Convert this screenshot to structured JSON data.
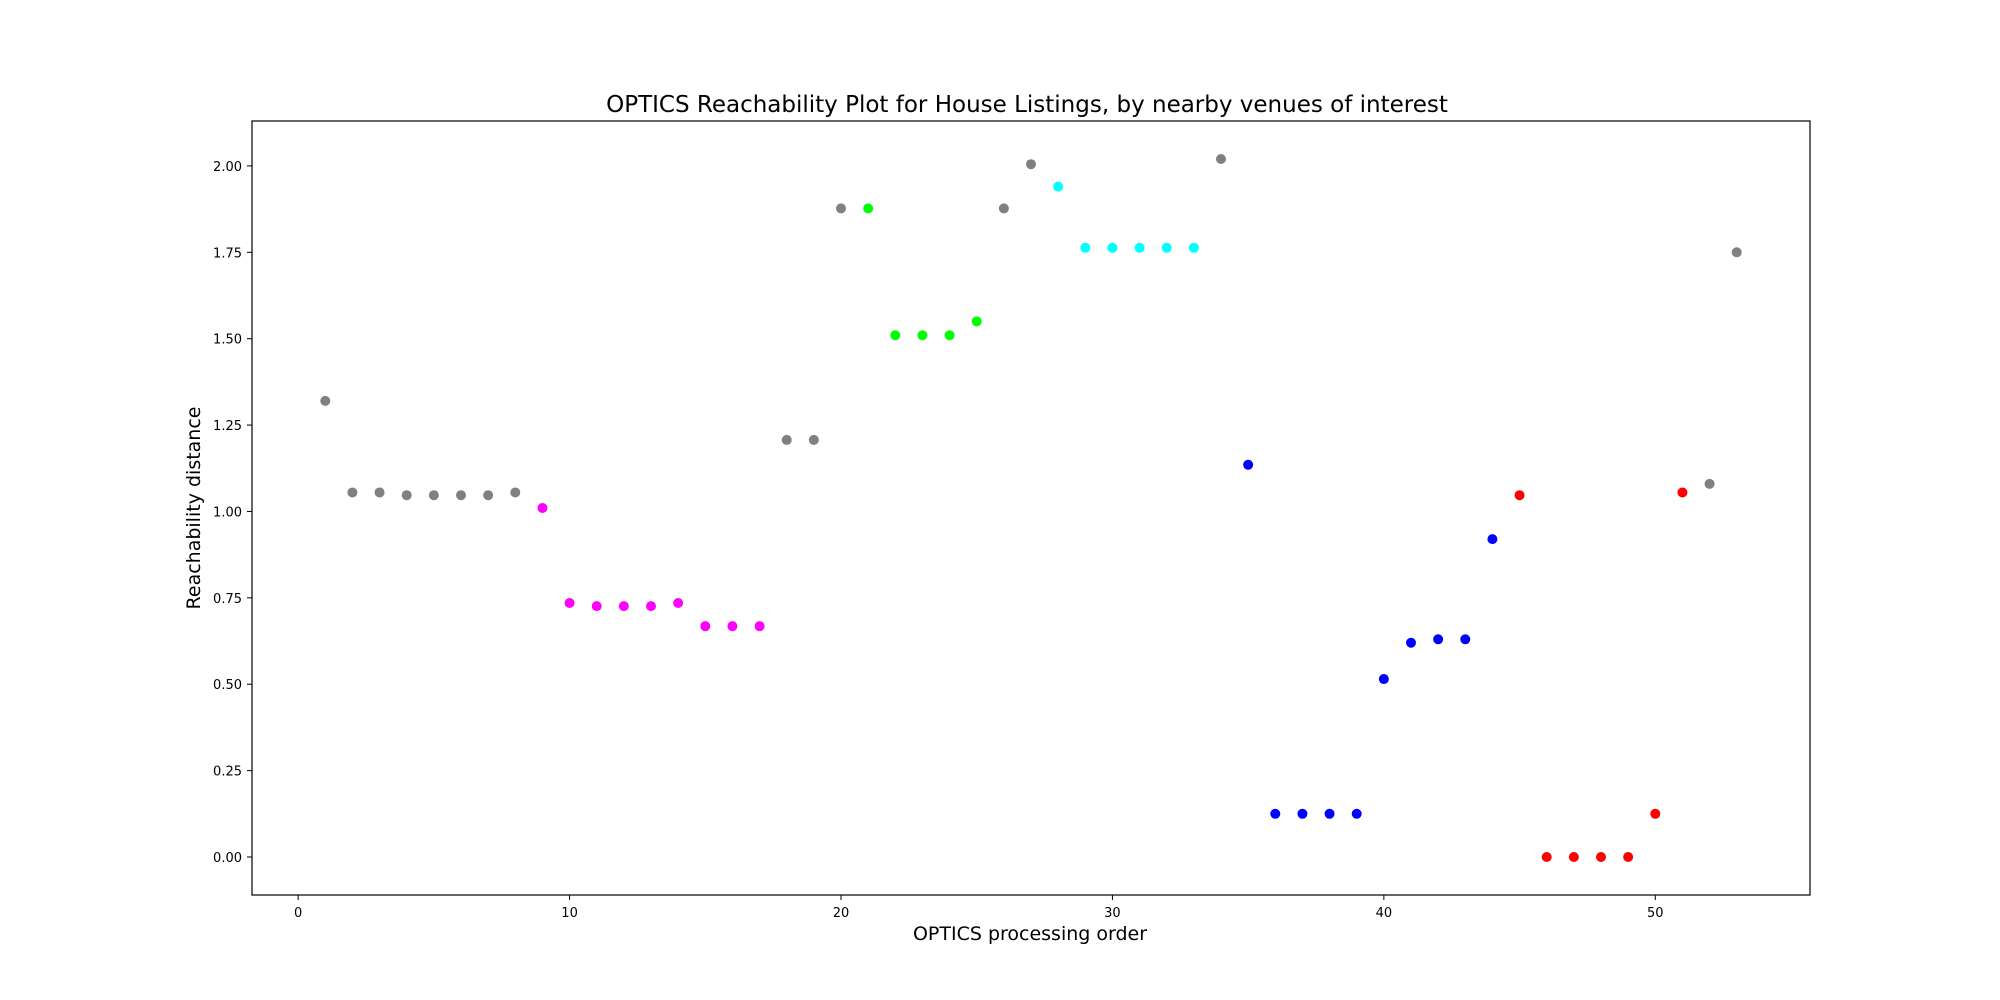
{
  "chart_data": {
    "type": "scatter",
    "title": "OPTICS Reachability Plot for House Listings, by nearby venues of interest",
    "xlabel": "OPTICS processing order",
    "ylabel": "Reachability distance",
    "xlim": [
      -1.7,
      55.7
    ],
    "ylim": [
      -0.11,
      2.13
    ],
    "xticks": [
      0,
      10,
      20,
      30,
      40,
      50
    ],
    "yticks": [
      0.0,
      0.25,
      0.5,
      0.75,
      1.0,
      1.25,
      1.5,
      1.75,
      2.0
    ],
    "grid": false,
    "legend": "none",
    "colors": {
      "noise": "#808080",
      "magenta": "#ff00ff",
      "green": "#00ff00",
      "cyan": "#00ffff",
      "blue": "#0000ff",
      "red": "#ff0000"
    },
    "points": [
      {
        "x": 1,
        "y": 1.32,
        "color": "#808080"
      },
      {
        "x": 2,
        "y": 1.055,
        "color": "#808080"
      },
      {
        "x": 3,
        "y": 1.055,
        "color": "#808080"
      },
      {
        "x": 4,
        "y": 1.047,
        "color": "#808080"
      },
      {
        "x": 5,
        "y": 1.047,
        "color": "#808080"
      },
      {
        "x": 6,
        "y": 1.047,
        "color": "#808080"
      },
      {
        "x": 7,
        "y": 1.047,
        "color": "#808080"
      },
      {
        "x": 8,
        "y": 1.055,
        "color": "#808080"
      },
      {
        "x": 9,
        "y": 1.01,
        "color": "#ff00ff"
      },
      {
        "x": 10,
        "y": 0.735,
        "color": "#ff00ff"
      },
      {
        "x": 11,
        "y": 0.726,
        "color": "#ff00ff"
      },
      {
        "x": 12,
        "y": 0.726,
        "color": "#ff00ff"
      },
      {
        "x": 13,
        "y": 0.726,
        "color": "#ff00ff"
      },
      {
        "x": 14,
        "y": 0.735,
        "color": "#ff00ff"
      },
      {
        "x": 15,
        "y": 0.668,
        "color": "#ff00ff"
      },
      {
        "x": 16,
        "y": 0.668,
        "color": "#ff00ff"
      },
      {
        "x": 17,
        "y": 0.668,
        "color": "#ff00ff"
      },
      {
        "x": 18,
        "y": 1.207,
        "color": "#808080"
      },
      {
        "x": 19,
        "y": 1.207,
        "color": "#808080"
      },
      {
        "x": 20,
        "y": 1.877,
        "color": "#808080"
      },
      {
        "x": 21,
        "y": 1.877,
        "color": "#00ff00"
      },
      {
        "x": 22,
        "y": 1.51,
        "color": "#00ff00"
      },
      {
        "x": 23,
        "y": 1.51,
        "color": "#00ff00"
      },
      {
        "x": 24,
        "y": 1.51,
        "color": "#00ff00"
      },
      {
        "x": 25,
        "y": 1.55,
        "color": "#00ff00"
      },
      {
        "x": 26,
        "y": 1.877,
        "color": "#808080"
      },
      {
        "x": 27,
        "y": 2.005,
        "color": "#808080"
      },
      {
        "x": 28,
        "y": 1.94,
        "color": "#00ffff"
      },
      {
        "x": 29,
        "y": 1.763,
        "color": "#00ffff"
      },
      {
        "x": 30,
        "y": 1.763,
        "color": "#00ffff"
      },
      {
        "x": 31,
        "y": 1.763,
        "color": "#00ffff"
      },
      {
        "x": 32,
        "y": 1.763,
        "color": "#00ffff"
      },
      {
        "x": 33,
        "y": 1.763,
        "color": "#00ffff"
      },
      {
        "x": 34,
        "y": 2.02,
        "color": "#808080"
      },
      {
        "x": 35,
        "y": 1.135,
        "color": "#0000ff"
      },
      {
        "x": 36,
        "y": 0.125,
        "color": "#0000ff"
      },
      {
        "x": 37,
        "y": 0.125,
        "color": "#0000ff"
      },
      {
        "x": 38,
        "y": 0.125,
        "color": "#0000ff"
      },
      {
        "x": 39,
        "y": 0.125,
        "color": "#0000ff"
      },
      {
        "x": 40,
        "y": 0.515,
        "color": "#0000ff"
      },
      {
        "x": 41,
        "y": 0.62,
        "color": "#0000ff"
      },
      {
        "x": 42,
        "y": 0.63,
        "color": "#0000ff"
      },
      {
        "x": 43,
        "y": 0.63,
        "color": "#0000ff"
      },
      {
        "x": 44,
        "y": 0.92,
        "color": "#0000ff"
      },
      {
        "x": 45,
        "y": 1.047,
        "color": "#ff0000"
      },
      {
        "x": 46,
        "y": 0.0,
        "color": "#ff0000"
      },
      {
        "x": 47,
        "y": 0.0,
        "color": "#ff0000"
      },
      {
        "x": 48,
        "y": 0.0,
        "color": "#ff0000"
      },
      {
        "x": 49,
        "y": 0.0,
        "color": "#ff0000"
      },
      {
        "x": 50,
        "y": 0.125,
        "color": "#ff0000"
      },
      {
        "x": 51,
        "y": 1.055,
        "color": "#ff0000"
      },
      {
        "x": 52,
        "y": 1.08,
        "color": "#808080"
      },
      {
        "x": 53,
        "y": 1.75,
        "color": "#808080"
      }
    ]
  }
}
